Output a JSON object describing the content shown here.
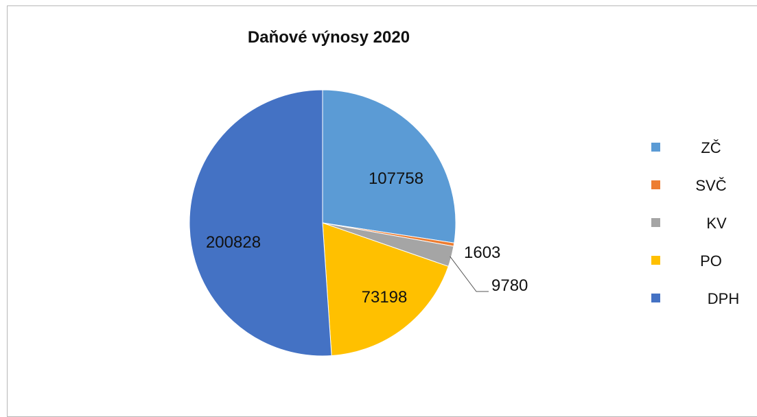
{
  "chart_data": {
    "type": "pie",
    "title": "Daňové výnosy 2020",
    "categories": [
      "ZČ",
      "SVČ",
      "KV",
      "PO",
      "DPH"
    ],
    "values": [
      107758,
      1603,
      9780,
      73198,
      200828
    ],
    "colors": [
      "#5B9BD5",
      "#ED7D31",
      "#A5A5A5",
      "#FFC000",
      "#4472C4"
    ],
    "data_labels": [
      "107758",
      "1603",
      "9780",
      "73198",
      "200828"
    ],
    "legend_position": "right",
    "start_angle": "12 o'clock, clockwise"
  }
}
